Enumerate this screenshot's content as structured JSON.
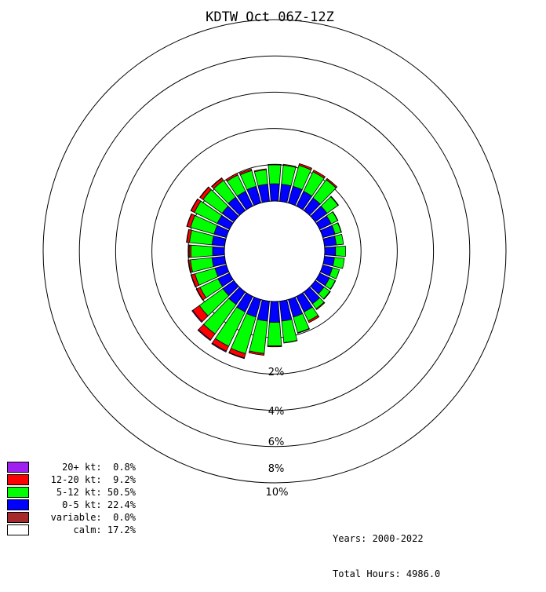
{
  "chart_data": {
    "type": "windrose",
    "title": "KDTW Oct 06Z-12Z",
    "directions_deg": [
      0,
      10,
      20,
      30,
      40,
      50,
      60,
      70,
      80,
      90,
      100,
      110,
      120,
      130,
      140,
      150,
      160,
      170,
      180,
      190,
      200,
      210,
      220,
      230,
      240,
      250,
      260,
      270,
      280,
      290,
      300,
      310,
      320,
      330,
      340,
      350
    ],
    "radial_ticks": [
      "2%",
      "4%",
      "6%",
      "8%",
      "10%"
    ],
    "radial_tick_values": [
      2,
      4,
      6,
      8,
      10
    ],
    "series": [
      {
        "name": "0-5 kt",
        "color": "#0000ff",
        "values": [
          0.95,
          0.95,
          0.95,
          0.9,
          0.85,
          0.8,
          0.7,
          0.7,
          0.65,
          0.6,
          0.55,
          0.55,
          0.6,
          0.6,
          0.8,
          0.95,
          1.0,
          1.1,
          1.15,
          1.1,
          1.0,
          0.95,
          0.85,
          0.75,
          0.7,
          0.65,
          0.7,
          0.65,
          0.7,
          0.7,
          0.75,
          0.8,
          0.9,
          0.9,
          0.95,
          0.95
        ]
      },
      {
        "name": "5-12 kt",
        "color": "#00ff00",
        "values": [
          1.05,
          1.05,
          1.2,
          1.2,
          1.25,
          0.75,
          0.4,
          0.35,
          0.4,
          0.55,
          0.55,
          0.4,
          0.35,
          0.4,
          0.35,
          0.55,
          0.9,
          1.2,
          1.3,
          1.8,
          2.1,
          2.1,
          2.0,
          1.6,
          1.1,
          1.15,
          1.2,
          1.2,
          1.25,
          1.35,
          1.4,
          1.3,
          1.15,
          1.0,
          0.9,
          0.8
        ]
      },
      {
        "name": "12-20 kt",
        "color": "#ff0000",
        "values": [
          0.03,
          0.05,
          0.1,
          0.1,
          0.08,
          0.03,
          0.02,
          0.02,
          0.0,
          0.0,
          0.0,
          0.0,
          0.02,
          0.03,
          0.05,
          0.1,
          0.03,
          0.02,
          0.05,
          0.1,
          0.25,
          0.3,
          0.4,
          0.45,
          0.2,
          0.2,
          0.1,
          0.1,
          0.15,
          0.2,
          0.2,
          0.2,
          0.15,
          0.1,
          0.1,
          0.05
        ]
      },
      {
        "name": "20+ kt",
        "color": "#a020f0",
        "values": [
          0.0,
          0.0,
          0.0,
          0.0,
          0.0,
          0.0,
          0.0,
          0.0,
          0.0,
          0.0,
          0.0,
          0.0,
          0.0,
          0.0,
          0.0,
          0.0,
          0.0,
          0.0,
          0.0,
          0.0,
          0.03,
          0.05,
          0.05,
          0.05,
          0.03,
          0.03,
          0.03,
          0.02,
          0.02,
          0.02,
          0.02,
          0.02,
          0.02,
          0.0,
          0.0,
          0.0
        ]
      }
    ],
    "legend": [
      {
        "label": "20+ kt:  0.8%",
        "color": "#a020f0"
      },
      {
        "label": "12-20 kt:  9.2%",
        "color": "#ff0000"
      },
      {
        "label": "5-12 kt: 50.5%",
        "color": "#00ff00"
      },
      {
        "label": "0-5 kt: 22.4%",
        "color": "#0000ff"
      },
      {
        "label": "variable:  0.0%",
        "color": "#a52a2a"
      },
      {
        "label": "calm: 17.2%",
        "color": "#ffffff"
      }
    ],
    "legend_placement": "bottom-left",
    "footer": {
      "years": "Years: 2000-2022",
      "total_hours": "Total Hours: 4986.0"
    }
  }
}
